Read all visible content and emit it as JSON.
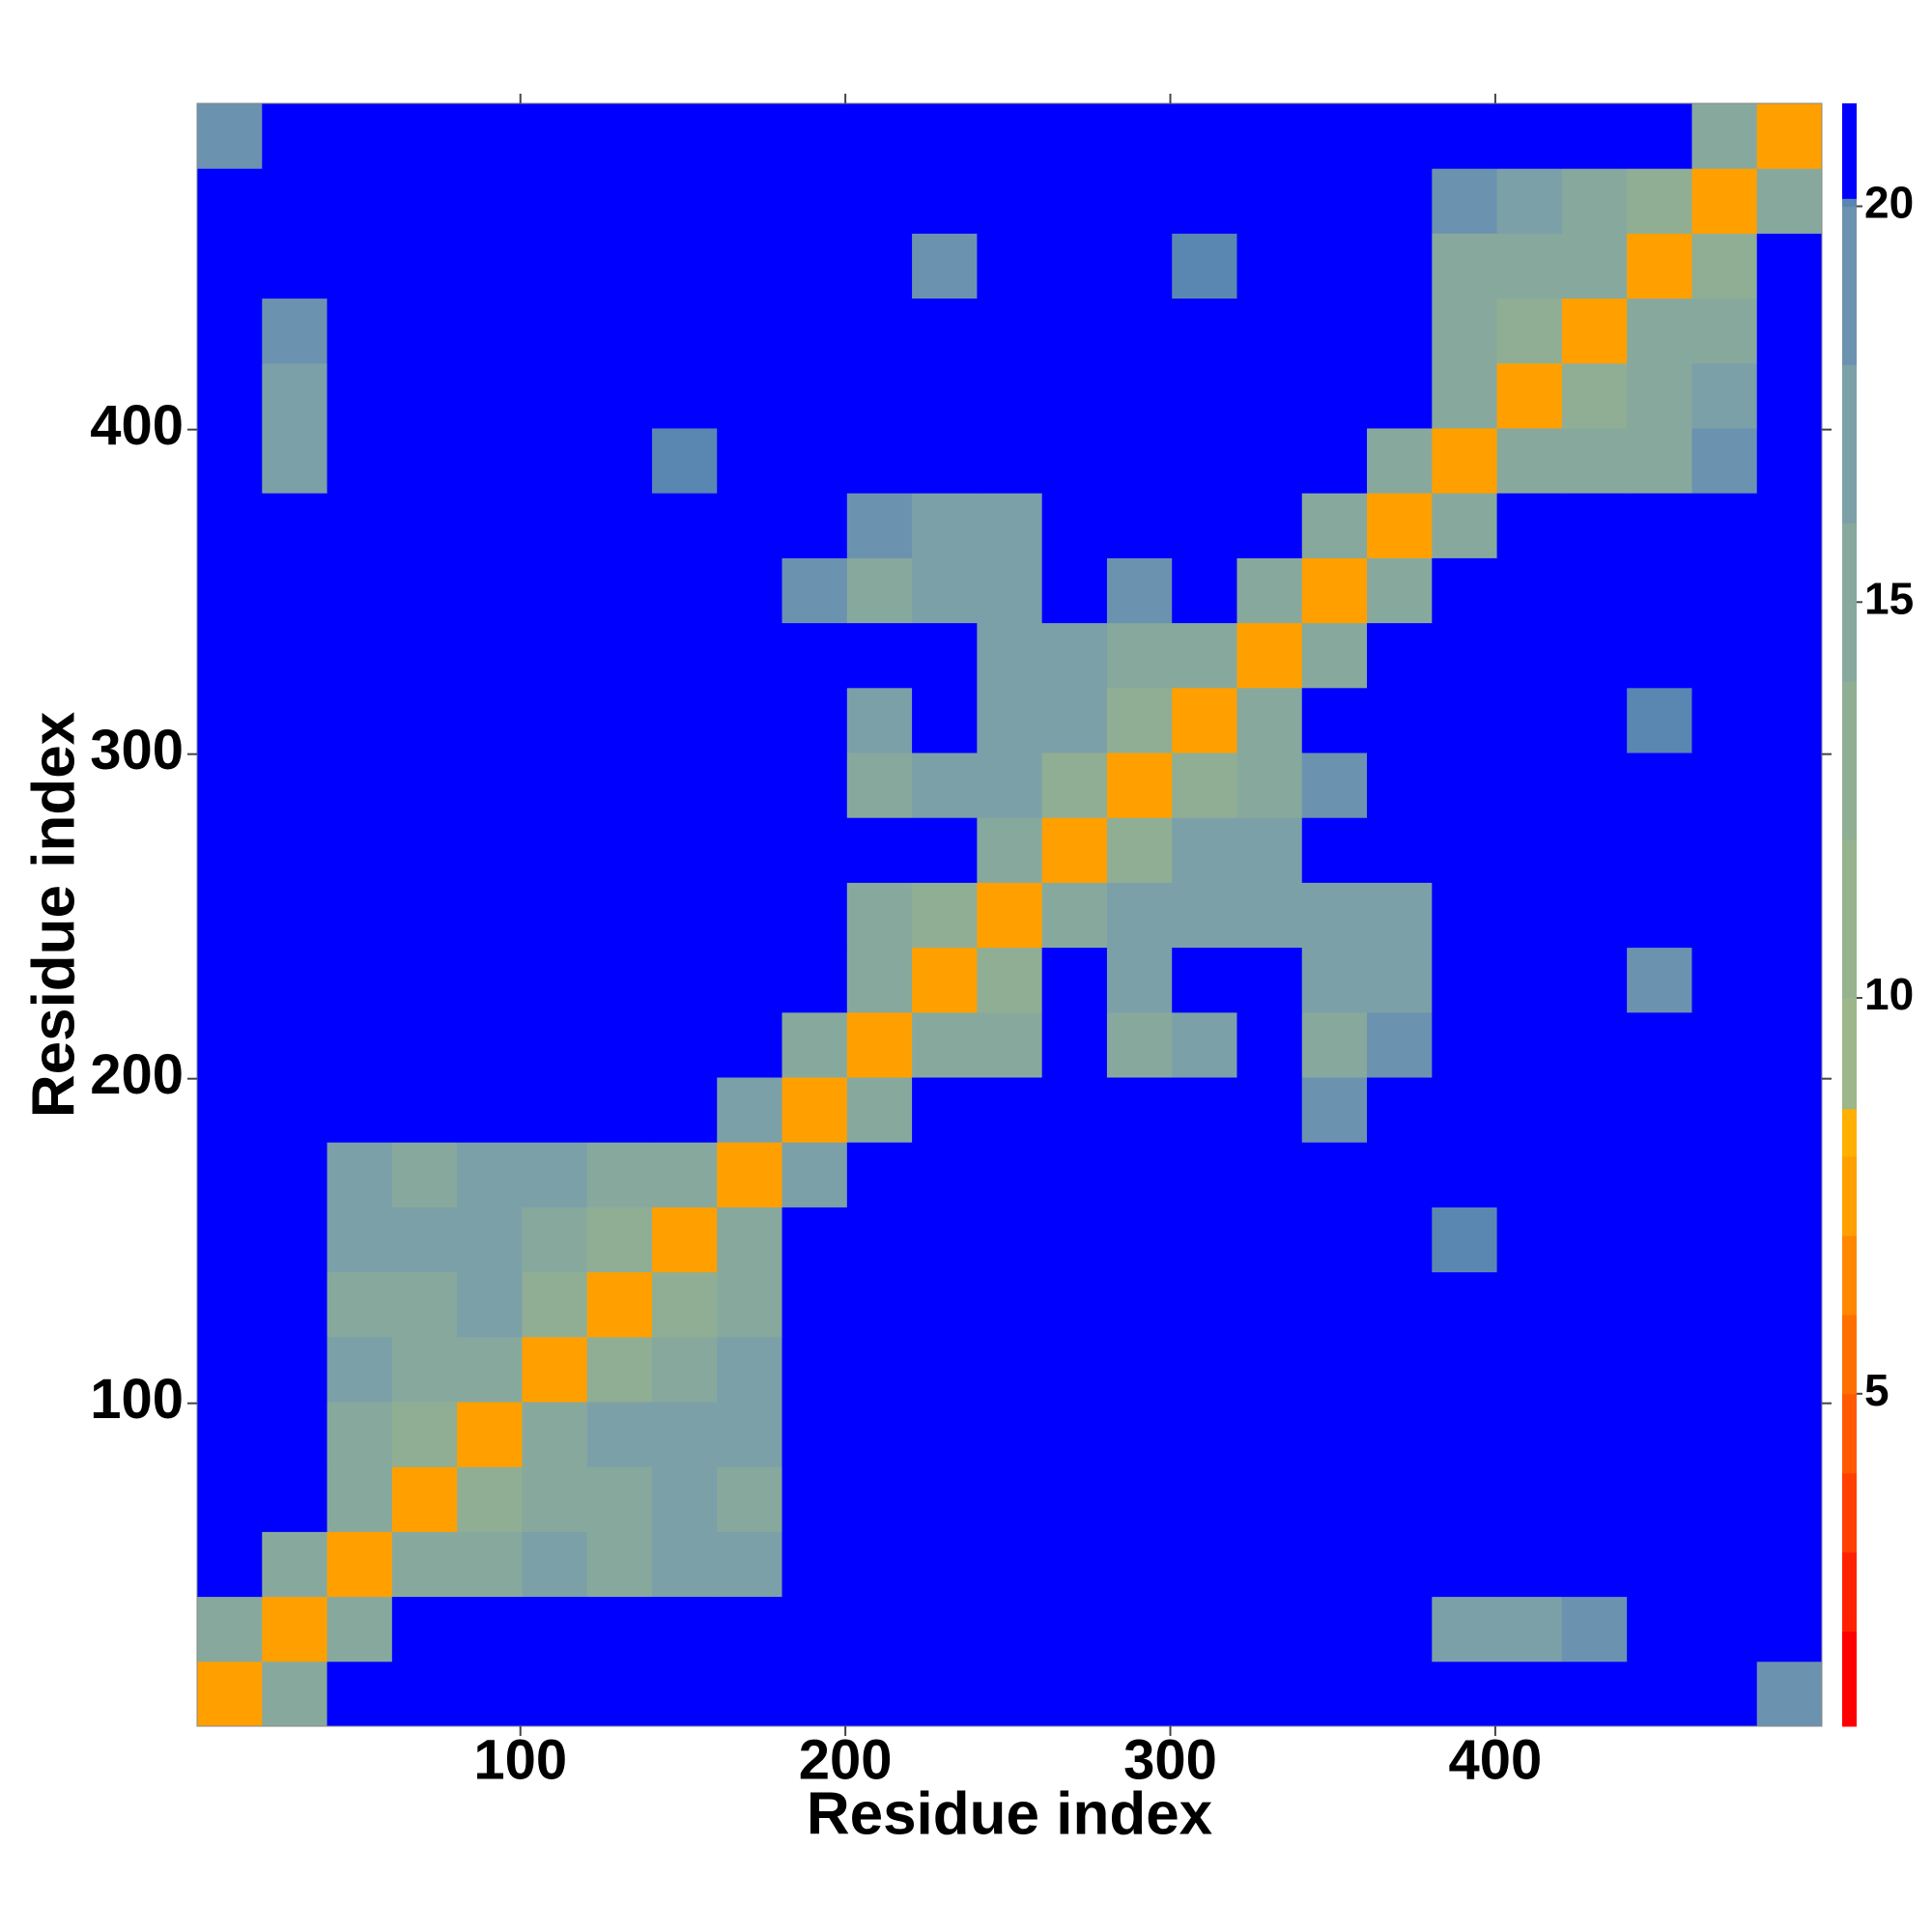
{
  "chart_data": {
    "type": "heatmap",
    "x_label": "Residue index",
    "y_label": "Residue index",
    "xlim": [
      0.5,
      500.5
    ],
    "ylim": [
      0.5,
      500.5
    ],
    "xticks": [
      100,
      200,
      300,
      400
    ],
    "yticks": [
      100,
      200,
      300,
      400
    ],
    "x": [
      10.5,
      30.5,
      50.5,
      70.5,
      90.5,
      110.5,
      130.5,
      150.5,
      170.5,
      190.5,
      210.5,
      230.5,
      250.5,
      270.5,
      290.5,
      310.5,
      330.5,
      350.5,
      370.5,
      390.5,
      410.5,
      430.5,
      450.5,
      470.5,
      490.5
    ],
    "y": [
      10.5,
      30.5,
      50.5,
      70.5,
      90.5,
      110.5,
      130.5,
      150.5,
      170.5,
      190.5,
      210.5,
      230.5,
      250.5,
      270.5,
      290.5,
      310.5,
      330.5,
      350.5,
      370.5,
      390.5,
      410.5,
      430.5,
      450.5,
      470.5,
      490.5
    ],
    "z": [
      [
        7,
        15,
        21,
        21,
        21,
        21,
        21,
        21,
        21,
        21,
        21,
        21,
        21,
        21,
        21,
        21,
        21,
        21,
        21,
        21,
        21,
        21,
        21,
        21,
        19
      ],
      [
        15,
        7,
        15,
        21,
        21,
        21,
        21,
        21,
        21,
        21,
        21,
        21,
        21,
        21,
        21,
        21,
        21,
        21,
        21,
        17,
        16,
        18,
        21,
        21,
        21
      ],
      [
        21,
        15,
        7,
        14,
        15,
        16,
        15,
        17,
        16,
        21,
        21,
        21,
        21,
        21,
        21,
        21,
        21,
        21,
        21,
        21,
        21,
        21,
        21,
        21,
        21
      ],
      [
        21,
        21,
        14,
        7,
        13,
        15,
        14,
        17,
        15,
        21,
        21,
        21,
        21,
        21,
        21,
        21,
        21,
        21,
        21,
        21,
        21,
        21,
        21,
        21,
        21
      ],
      [
        21,
        21,
        15,
        13,
        7,
        14,
        16,
        16,
        17,
        21,
        21,
        21,
        21,
        21,
        21,
        21,
        21,
        21,
        21,
        21,
        21,
        21,
        21,
        21,
        21
      ],
      [
        21,
        21,
        16,
        15,
        14,
        7,
        13,
        14,
        16,
        21,
        21,
        21,
        21,
        21,
        21,
        21,
        21,
        21,
        21,
        21,
        21,
        21,
        21,
        21,
        21
      ],
      [
        21,
        21,
        15,
        14,
        16,
        13,
        7,
        13,
        15,
        21,
        21,
        21,
        21,
        21,
        21,
        21,
        21,
        21,
        21,
        21,
        21,
        21,
        21,
        21,
        21
      ],
      [
        21,
        21,
        17,
        17,
        16,
        14,
        13,
        7,
        15,
        21,
        21,
        21,
        21,
        21,
        21,
        21,
        21,
        21,
        21,
        20,
        21,
        21,
        21,
        21,
        21
      ],
      [
        21,
        21,
        16,
        15,
        17,
        16,
        15,
        15,
        7,
        16,
        21,
        21,
        21,
        21,
        21,
        21,
        21,
        21,
        21,
        21,
        21,
        21,
        21,
        21,
        21
      ],
      [
        21,
        21,
        21,
        21,
        21,
        21,
        21,
        21,
        16,
        7,
        15,
        21,
        21,
        21,
        21,
        21,
        21,
        18,
        21,
        21,
        21,
        21,
        21,
        21,
        21
      ],
      [
        21,
        21,
        21,
        21,
        21,
        21,
        21,
        21,
        21,
        15,
        7,
        14,
        15,
        21,
        15,
        17,
        21,
        15,
        18,
        21,
        21,
        21,
        21,
        21,
        21
      ],
      [
        21,
        21,
        21,
        21,
        21,
        21,
        21,
        21,
        21,
        21,
        14,
        7,
        13,
        21,
        17,
        21,
        21,
        16,
        16,
        21,
        21,
        21,
        18,
        21,
        21
      ],
      [
        21,
        21,
        21,
        21,
        21,
        21,
        21,
        21,
        21,
        21,
        15,
        13,
        7,
        14,
        16,
        16,
        17,
        16,
        17,
        21,
        21,
        21,
        21,
        21,
        21
      ],
      [
        21,
        21,
        21,
        21,
        21,
        21,
        21,
        21,
        21,
        21,
        21,
        21,
        14,
        7,
        13,
        16,
        17,
        21,
        21,
        21,
        21,
        21,
        21,
        21,
        21
      ],
      [
        21,
        21,
        21,
        21,
        21,
        21,
        21,
        21,
        21,
        21,
        15,
        17,
        16,
        13,
        7,
        13,
        15,
        19,
        21,
        21,
        21,
        21,
        21,
        21,
        21
      ],
      [
        21,
        21,
        21,
        21,
        21,
        21,
        21,
        21,
        21,
        21,
        17,
        21,
        16,
        16,
        13,
        7,
        14,
        21,
        21,
        21,
        21,
        21,
        20,
        21,
        21
      ],
      [
        21,
        21,
        21,
        21,
        21,
        21,
        21,
        21,
        21,
        21,
        21,
        21,
        17,
        17,
        15,
        14,
        7,
        14,
        21,
        21,
        21,
        21,
        21,
        21,
        21
      ],
      [
        21,
        21,
        21,
        21,
        21,
        21,
        21,
        21,
        21,
        18,
        15,
        16,
        16,
        21,
        19,
        21,
        14,
        7,
        14,
        21,
        21,
        21,
        21,
        21,
        21
      ],
      [
        21,
        21,
        21,
        21,
        21,
        21,
        21,
        21,
        21,
        21,
        18,
        16,
        17,
        21,
        21,
        21,
        21,
        14,
        7,
        15,
        21,
        21,
        21,
        21,
        21
      ],
      [
        21,
        17,
        21,
        21,
        21,
        21,
        21,
        20,
        21,
        21,
        21,
        21,
        21,
        21,
        21,
        21,
        21,
        21,
        15,
        7,
        14,
        14,
        15,
        18,
        21
      ],
      [
        21,
        16,
        21,
        21,
        21,
        21,
        21,
        21,
        21,
        21,
        21,
        21,
        21,
        21,
        21,
        21,
        21,
        21,
        21,
        14,
        7,
        13,
        14,
        16,
        21
      ],
      [
        21,
        18,
        21,
        21,
        21,
        21,
        21,
        21,
        21,
        21,
        21,
        21,
        21,
        21,
        21,
        21,
        21,
        21,
        21,
        14,
        13,
        7,
        14,
        15,
        21
      ],
      [
        21,
        21,
        21,
        21,
        21,
        21,
        21,
        21,
        21,
        21,
        21,
        18,
        21,
        21,
        21,
        20,
        21,
        21,
        21,
        15,
        14,
        14,
        7,
        13,
        21
      ],
      [
        21,
        21,
        21,
        21,
        21,
        21,
        21,
        21,
        21,
        21,
        21,
        21,
        21,
        21,
        21,
        21,
        21,
        21,
        21,
        18,
        16,
        15,
        13,
        7,
        14
      ],
      [
        19,
        21,
        21,
        21,
        21,
        21,
        21,
        21,
        21,
        21,
        21,
        21,
        21,
        21,
        21,
        21,
        21,
        21,
        21,
        21,
        21,
        21,
        21,
        14,
        7
      ]
    ],
    "clim": [
      0.8,
      21.3
    ],
    "colorbar_ticks": [
      5,
      10,
      15,
      20
    ],
    "colorscale": [
      {
        "value": 0.8,
        "color": "#ff0000"
      },
      {
        "value": 2,
        "color": "#ff2200"
      },
      {
        "value": 3,
        "color": "#ff4000"
      },
      {
        "value": 4,
        "color": "#ff5a00"
      },
      {
        "value": 5,
        "color": "#ff7000"
      },
      {
        "value": 6,
        "color": "#ff8800"
      },
      {
        "value": 7,
        "color": "#ffa000"
      },
      {
        "value": 8,
        "color": "#ffb000"
      },
      {
        "value": 8.6,
        "color": "#9db68a"
      },
      {
        "value": 10,
        "color": "#97b38e"
      },
      {
        "value": 12,
        "color": "#90ae94"
      },
      {
        "value": 14,
        "color": "#87a99d"
      },
      {
        "value": 16,
        "color": "#7ca0a8"
      },
      {
        "value": 18,
        "color": "#6b93b0"
      },
      {
        "value": 20,
        "color": "#5a86b2"
      },
      {
        "value": 20.1,
        "color": "#0000ff"
      }
    ],
    "grid": false
  }
}
